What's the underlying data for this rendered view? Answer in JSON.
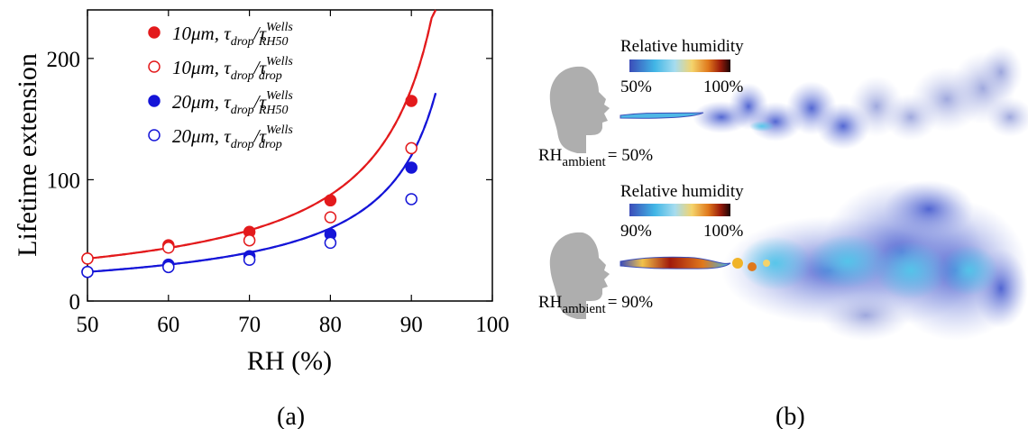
{
  "chart_data": {
    "type": "line",
    "xlabel": "RH (%)",
    "ylabel": "Lifetime extension",
    "xlim": [
      50,
      100
    ],
    "ylim": [
      0,
      240
    ],
    "xticks": [
      50,
      60,
      70,
      80,
      90,
      100
    ],
    "yticks": [
      0,
      100,
      200
    ],
    "grid": false,
    "legend_position": "top-left",
    "series": [
      {
        "name_main": "10μm, τ",
        "name_sub1": "drop",
        "name_mid": "/τ",
        "name_sup": "Wells",
        "name_sub2": "RH50",
        "color": "#e31a1c",
        "marker": "filled-circle",
        "line_style": "solid",
        "x": [
          50,
          60,
          70,
          80,
          90
        ],
        "y": [
          35,
          46,
          57,
          83,
          165
        ],
        "fit_scale": 17.5,
        "fit_end_x": 93
      },
      {
        "name_main": "10μm, τ",
        "name_sub1": "drop",
        "name_mid": "/τ",
        "name_sup": "Wells",
        "name_sub2": "drop",
        "color": "#e31a1c",
        "marker": "open-circle",
        "line_style": "dashed",
        "x": [
          50,
          60,
          70,
          80,
          90
        ],
        "y": [
          35,
          44,
          50,
          69,
          126
        ],
        "fit_scale": 12.8,
        "fit_end_x": 93
      },
      {
        "name_main": "20μm, τ",
        "name_sub1": "drop",
        "name_mid": "/τ",
        "name_sup": "Wells",
        "name_sub2": "RH50",
        "color": "#1515d8",
        "marker": "filled-circle",
        "line_style": "solid",
        "x": [
          50,
          60,
          70,
          80,
          90
        ],
        "y": [
          24,
          30,
          37,
          55,
          110
        ],
        "fit_scale": 11.6,
        "fit_end_x": 93
      },
      {
        "name_main": "20μm, τ",
        "name_sub1": "drop",
        "name_mid": "/τ",
        "name_sup": "Wells",
        "name_sub2": "drop",
        "color": "#1515d8",
        "marker": "open-circle",
        "line_style": "dashed",
        "x": [
          50,
          60,
          70,
          80,
          90
        ],
        "y": [
          24,
          28,
          34,
          48,
          84
        ],
        "fit_scale": 8.5,
        "fit_end_x": 93
      }
    ]
  },
  "panel_labels": {
    "a": "(a)",
    "b": "(b)"
  },
  "panel_b": {
    "top": {
      "colorbar_title": "Relative humidity",
      "colorbar_min": "50%",
      "colorbar_max": "100%",
      "rh_prefix": "RH",
      "rh_sub": "ambient",
      "rh_value": "= 50%"
    },
    "bottom": {
      "colorbar_title": "Relative humidity",
      "colorbar_min": "90%",
      "colorbar_max": "100%",
      "rh_prefix": "RH",
      "rh_sub": "ambient",
      "rh_value": "= 90%"
    }
  }
}
